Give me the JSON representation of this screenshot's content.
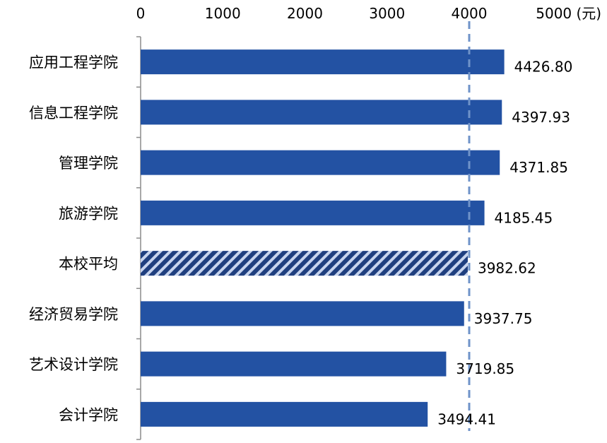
{
  "chart_data": {
    "type": "bar",
    "orientation": "horizontal",
    "categories": [
      "应用工程学院",
      "信息工程学院",
      "管理学院",
      "旅游学院",
      "本校平均",
      "经济贸易学院",
      "艺术设计学院",
      "会计学院"
    ],
    "values": [
      4426.8,
      4397.93,
      4371.85,
      4185.45,
      3982.62,
      3937.75,
      3719.85,
      3494.41
    ],
    "value_labels": [
      "4426.80",
      "4397.93",
      "4371.85",
      "4185.45",
      "3982.62",
      "3937.75",
      "3719.85",
      "3494.41"
    ],
    "xlim": [
      0,
      5000
    ],
    "x_ticks": [
      "0",
      "1000",
      "2000",
      "3000",
      "4000",
      "5000 (元)"
    ],
    "x_tick_values": [
      0,
      1000,
      2000,
      3000,
      4000,
      5000
    ],
    "reference_line": 4000,
    "highlight_category": "本校平均",
    "axis_position": "top",
    "grid": false,
    "colors": {
      "bar": "#2352a3",
      "highlight_stripe_dark": "#1f3f7f",
      "highlight_stripe_light": "#c7d4ee",
      "reference_line": "#6f93c9",
      "axis": "#8c8c8c"
    }
  }
}
